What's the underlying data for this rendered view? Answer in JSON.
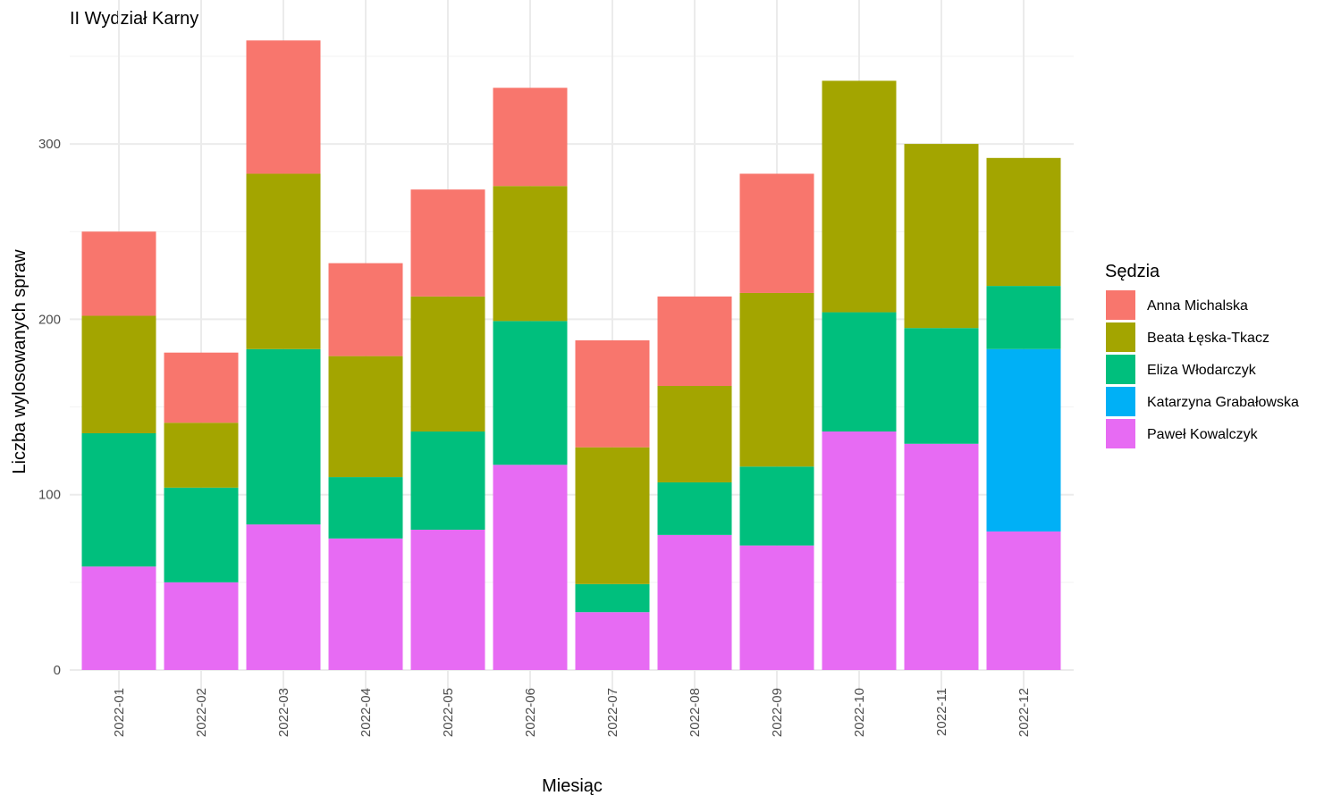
{
  "chart_data": {
    "type": "bar",
    "stacked": true,
    "title": "II Wydział Karny",
    "xlabel": "Miesiąc",
    "ylabel": "Liczba wylosowanych spraw",
    "ylim": [
      0,
      360
    ],
    "yticks": [
      0,
      100,
      200,
      300
    ],
    "grid": true,
    "legend": {
      "title": "Sędzia",
      "position": "right"
    },
    "categories": [
      "2022-01",
      "2022-02",
      "2022-03",
      "2022-04",
      "2022-05",
      "2022-06",
      "2022-07",
      "2022-08",
      "2022-09",
      "2022-10",
      "2022-11",
      "2022-12"
    ],
    "series": [
      {
        "name": "Anna Michalska",
        "color": "#F8766D",
        "values": [
          48,
          40,
          76,
          53,
          61,
          56,
          61,
          51,
          68,
          0,
          0,
          0
        ]
      },
      {
        "name": "Beata Łęska-Tkacz",
        "color": "#A3A500",
        "values": [
          67,
          37,
          100,
          69,
          77,
          77,
          78,
          55,
          99,
          132,
          105,
          73
        ]
      },
      {
        "name": "Eliza Włodarczyk",
        "color": "#00BF7D",
        "values": [
          76,
          54,
          100,
          35,
          56,
          82,
          16,
          30,
          45,
          68,
          66,
          36
        ]
      },
      {
        "name": "Katarzyna Grabałowska",
        "color": "#00B0F6",
        "values": [
          0,
          0,
          0,
          0,
          0,
          0,
          0,
          0,
          0,
          0,
          0,
          104
        ]
      },
      {
        "name": "Paweł Kowalczyk",
        "color": "#E76BF3",
        "values": [
          59,
          50,
          83,
          75,
          80,
          117,
          33,
          77,
          71,
          136,
          129,
          79
        ]
      }
    ],
    "stack_order_bottom_to_top": [
      "Paweł Kowalczyk",
      "Katarzyna Grabałowska",
      "Eliza Włodarczyk",
      "Beata Łęska-Tkacz",
      "Anna Michalska"
    ]
  }
}
